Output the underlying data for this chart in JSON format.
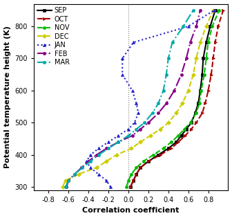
{
  "xlabel": "Correlation coefficient",
  "ylabel": "Potential temperature height (K)",
  "xlim": [
    -0.95,
    1.0
  ],
  "ylim": [
    290,
    870
  ],
  "xticks": [
    -0.8,
    -0.6,
    -0.4,
    -0.2,
    0.0,
    0.2,
    0.4,
    0.6,
    0.8
  ],
  "xticklabels": [
    "-0.8",
    "-0.6",
    "-0.4",
    "-0.2",
    "0.0",
    "0.2",
    "0.4",
    "0.6",
    "0.8"
  ],
  "yticks": [
    300,
    400,
    500,
    600,
    700,
    800
  ],
  "levels": [
    300,
    320,
    340,
    360,
    380,
    400,
    420,
    440,
    460,
    480,
    500,
    530,
    560,
    600,
    650,
    700,
    750,
    800,
    850
  ],
  "series": [
    {
      "label": "SEP",
      "color": "black",
      "linestyle": "-",
      "marker": "s",
      "markersize": 3,
      "linewidth": 1.5,
      "values": [
        0.02,
        0.05,
        0.08,
        0.12,
        0.2,
        0.3,
        0.4,
        0.48,
        0.53,
        0.58,
        0.63,
        0.67,
        0.7,
        0.72,
        0.74,
        0.75,
        0.78,
        0.82,
        0.87
      ]
    },
    {
      "label": "OCT",
      "color": "#AA0000",
      "linestyle": "--",
      "marker": ">",
      "markersize": 3,
      "linewidth": 1.5,
      "values": [
        0.02,
        0.05,
        0.08,
        0.12,
        0.2,
        0.32,
        0.43,
        0.5,
        0.57,
        0.63,
        0.68,
        0.74,
        0.77,
        0.8,
        0.83,
        0.85,
        0.87,
        0.9,
        0.95
      ]
    },
    {
      "label": "NOV",
      "color": "#00BB00",
      "linestyle": "--",
      "marker": "o",
      "markersize": 3,
      "linewidth": 1.5,
      "values": [
        -0.02,
        0.0,
        0.03,
        0.08,
        0.15,
        0.25,
        0.35,
        0.43,
        0.5,
        0.56,
        0.62,
        0.68,
        0.71,
        0.73,
        0.76,
        0.78,
        0.8,
        0.84,
        0.91
      ]
    },
    {
      "label": "DEC",
      "color": "#CCCC00",
      "linestyle": "--",
      "marker": "D",
      "markersize": 3,
      "linewidth": 1.5,
      "values": [
        -0.66,
        -0.63,
        -0.5,
        -0.32,
        -0.22,
        -0.12,
        0.03,
        0.12,
        0.22,
        0.32,
        0.4,
        0.48,
        0.54,
        0.6,
        0.65,
        0.68,
        0.72,
        0.78,
        0.85
      ]
    },
    {
      "label": "JAN",
      "color": "#2222CC",
      "linestyle": ":",
      "marker": "^",
      "markersize": 3,
      "linewidth": 1.5,
      "values": [
        -0.18,
        -0.22,
        -0.3,
        -0.38,
        -0.42,
        -0.38,
        -0.3,
        -0.2,
        -0.1,
        0.0,
        0.06,
        0.1,
        0.08,
        0.04,
        -0.06,
        -0.06,
        0.05,
        0.6,
        0.86
      ]
    },
    {
      "label": "FEB",
      "color": "#880088",
      "linestyle": "-.",
      "marker": "o",
      "markersize": 3,
      "linewidth": 1.5,
      "values": [
        -0.62,
        -0.6,
        -0.54,
        -0.47,
        -0.4,
        -0.32,
        -0.22,
        -0.1,
        0.04,
        0.12,
        0.2,
        0.3,
        0.38,
        0.46,
        0.53,
        0.58,
        0.62,
        0.68,
        0.72
      ]
    },
    {
      "label": "MAR",
      "color": "#00AAAA",
      "linestyle": "-.",
      "marker": "o",
      "markersize": 3,
      "linewidth": 1.5,
      "values": [
        -0.63,
        -0.6,
        -0.54,
        -0.46,
        -0.38,
        -0.3,
        -0.2,
        -0.1,
        0.0,
        0.08,
        0.16,
        0.24,
        0.3,
        0.35,
        0.38,
        0.4,
        0.44,
        0.55,
        0.65
      ]
    }
  ]
}
